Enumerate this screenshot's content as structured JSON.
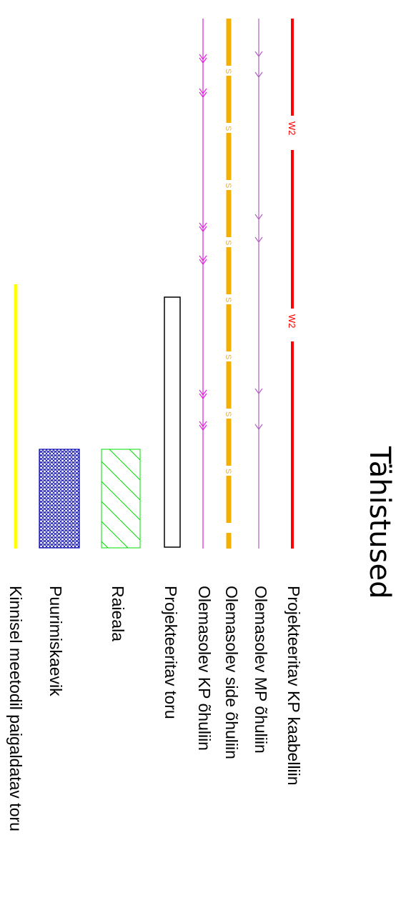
{
  "title": "Tähistused",
  "legend": [
    {
      "label": "Projekteeritav KP kaabelliin",
      "marker": "W2",
      "color": "#ff0000"
    },
    {
      "label": "Olemasolev MP õhuliin",
      "color": "#b060c0"
    },
    {
      "label": "Olemasolev side õhuliin",
      "marker": "S",
      "color": "#f2b000"
    },
    {
      "label": "Olemasolev KP õhuliin",
      "color": "#e020e0"
    },
    {
      "label": "Projekteeritav toru",
      "color": "#000000"
    },
    {
      "label": "Raieala",
      "color": "#00dd00"
    },
    {
      "label": "Puurimiskaevik",
      "color": "#0000aa"
    },
    {
      "label": "Kinnisel meetodil paigaldatav toru",
      "color": "#ffff00"
    }
  ]
}
